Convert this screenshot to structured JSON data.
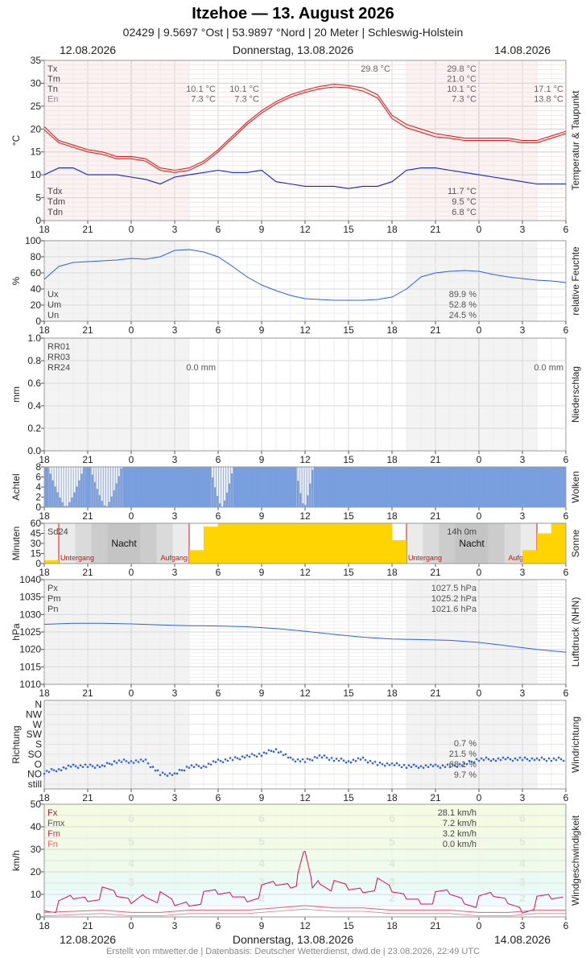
{
  "header": {
    "title": "Itzehoe  —  13. August 2026",
    "subtitle": "02429  |  9.5697 °Ost  |  53.9897 °Nord  |  20 Meter  |  Schleswig-Holstein",
    "date_left": "12.08.2026",
    "date_center": "Donnerstag, 13.08.2026",
    "date_right": "14.08.2026"
  },
  "footer": "Erstellt von mtwetter.de | Datenbasis: Deutscher Wetterdienst, dwd.de | 23.08.2026, 22:49 UTC",
  "x_ticks": [
    "18",
    "21",
    "0",
    "3",
    "6",
    "9",
    "12",
    "15",
    "18",
    "21",
    "0",
    "3",
    "6"
  ],
  "colors": {
    "temp": "#e02020",
    "dew": "#1020d0",
    "line": "#3060e0",
    "sun": "#ffd400",
    "gust": "#d01060",
    "wind_mean": "#e06070",
    "cloud": "#7ba0e0"
  },
  "chart_data": [
    {
      "type": "line",
      "id": "temperature",
      "ylabel": "°C",
      "side_label": "Temperatur & Taupunkt",
      "ylim": [
        0,
        35
      ],
      "yticks": [
        0,
        5,
        10,
        15,
        20,
        25,
        30,
        35
      ],
      "x_range_hours": [
        -6,
        30
      ],
      "legend_top": [
        {
          "key": "Tx",
          "day1": "",
          "day2": "29.8 °C",
          "day2b": "29.8 °C",
          "day3": ""
        },
        {
          "key": "Tm",
          "day1": "",
          "day2": "",
          "day2b": "21.0 °C",
          "day3": ""
        },
        {
          "key": "Tn",
          "day1": "10.1 °C",
          "day1b": "10.1 °C",
          "day2b": "10.1 °C",
          "day3": "17.1 °C"
        },
        {
          "key": "En",
          "day1": "7.3 °C",
          "day1b": "7.3 °C",
          "day2b": "7.3 °C",
          "day3": "13.8 °C"
        }
      ],
      "legend_bottom": [
        {
          "key": "Tdx",
          "value": "11.7 °C"
        },
        {
          "key": "Tdm",
          "value": "9.5 °C"
        },
        {
          "key": "Tdn",
          "value": "6.8 °C"
        }
      ],
      "series": [
        {
          "name": "Tx",
          "x": [
            -6,
            -5,
            -4,
            -3,
            -2,
            -1,
            0,
            1,
            2,
            3,
            4,
            5,
            6,
            7,
            8,
            9,
            10,
            11,
            12,
            13,
            14,
            15,
            16,
            17,
            18,
            19,
            20,
            21,
            22,
            23,
            24,
            25,
            26,
            27,
            28,
            29,
            30
          ],
          "y": [
            20.5,
            17.5,
            16.5,
            15.5,
            15.0,
            14.0,
            14.0,
            13.5,
            11.5,
            11.0,
            11.5,
            13.0,
            15.5,
            18.5,
            21.5,
            24.0,
            26.0,
            27.5,
            28.5,
            29.3,
            29.8,
            29.5,
            29.0,
            27.5,
            23.0,
            21.0,
            20.0,
            19.0,
            18.5,
            18.0,
            18.0,
            18.0,
            18.0,
            17.5,
            17.5,
            18.5,
            19.5
          ]
        },
        {
          "name": "Tm",
          "x": [
            -6,
            -5,
            -4,
            -3,
            -2,
            -1,
            0,
            1,
            2,
            3,
            4,
            5,
            6,
            7,
            8,
            9,
            10,
            11,
            12,
            13,
            14,
            15,
            16,
            17,
            18,
            19,
            20,
            21,
            22,
            23,
            24,
            25,
            26,
            27,
            28,
            29,
            30
          ],
          "y": [
            19.8,
            17.0,
            16.0,
            15.0,
            14.5,
            13.5,
            13.5,
            13.0,
            11.0,
            10.5,
            11.0,
            12.5,
            15.0,
            18.0,
            21.0,
            23.5,
            25.5,
            27.0,
            28.0,
            28.8,
            29.2,
            29.0,
            28.3,
            26.8,
            22.3,
            20.3,
            19.3,
            18.3,
            18.0,
            17.5,
            17.5,
            17.5,
            17.5,
            17.0,
            17.0,
            18.0,
            19.0
          ]
        },
        {
          "name": "Td",
          "x": [
            -6,
            -5,
            -4,
            -3,
            -2,
            -1,
            0,
            1,
            2,
            3,
            4,
            5,
            6,
            7,
            8,
            9,
            10,
            11,
            12,
            13,
            14,
            15,
            16,
            17,
            18,
            19,
            20,
            21,
            22,
            23,
            24,
            25,
            26,
            27,
            28,
            29,
            30
          ],
          "y": [
            10.0,
            11.5,
            11.5,
            10.0,
            10.0,
            10.0,
            9.5,
            9.0,
            8.0,
            9.5,
            10.0,
            10.5,
            11.0,
            10.5,
            10.5,
            11.0,
            8.5,
            8.0,
            7.5,
            7.5,
            7.5,
            7.0,
            7.5,
            7.5,
            8.5,
            11.0,
            11.5,
            11.5,
            11.0,
            10.5,
            10.0,
            9.5,
            9.0,
            8.5,
            8.0,
            8.0,
            8.0
          ]
        }
      ]
    },
    {
      "type": "line",
      "id": "humidity",
      "ylabel": "%",
      "side_label": "relative Feuchte",
      "ylim": [
        0,
        100
      ],
      "yticks": [
        0,
        20,
        40,
        60,
        80,
        100
      ],
      "legend": [
        {
          "key": "Ux",
          "value": "89.9 %"
        },
        {
          "key": "Um",
          "value": "52.8 %"
        },
        {
          "key": "Un",
          "value": "24.5 %"
        }
      ],
      "series": [
        {
          "name": "U",
          "x": [
            -6,
            -5,
            -4,
            -3,
            -2,
            -1,
            0,
            1,
            2,
            3,
            4,
            5,
            6,
            7,
            8,
            9,
            10,
            11,
            12,
            13,
            14,
            15,
            16,
            17,
            18,
            19,
            20,
            21,
            22,
            23,
            24,
            25,
            26,
            27,
            28,
            29,
            30
          ],
          "y": [
            52,
            68,
            73,
            74,
            75,
            76,
            78,
            77,
            80,
            88,
            89,
            86,
            80,
            68,
            55,
            45,
            38,
            32,
            28,
            27,
            26,
            26,
            26,
            27,
            30,
            40,
            55,
            60,
            62,
            63,
            62,
            58,
            55,
            53,
            51,
            50,
            48
          ]
        }
      ]
    },
    {
      "type": "bar",
      "id": "precipitation",
      "ylabel": "mm",
      "side_label": "Niederschlag",
      "ylim": [
        0,
        1.0
      ],
      "yticks": [
        0.0,
        0.2,
        0.4,
        0.6,
        0.8,
        1.0
      ],
      "legend": [
        "RR01",
        "RR03",
        "RR24"
      ],
      "totals": {
        "day1": "0.0 mm",
        "day2": "0.0 mm"
      },
      "values": []
    },
    {
      "type": "bar",
      "id": "clouds",
      "ylabel": "Achtel",
      "side_label": "Wolken",
      "ylim": [
        0,
        8
      ],
      "yticks": [
        0,
        2,
        4,
        6,
        8
      ],
      "clear_gaps_hours": [
        [
          -5.8,
          -3.3
        ],
        [
          -2.9,
          -0.7
        ],
        [
          5.4,
          7.0
        ],
        [
          11.3,
          12.5
        ]
      ]
    },
    {
      "type": "bar",
      "id": "sunshine",
      "ylabel": "Minuten",
      "side_label": "Sonne",
      "ylim": [
        0,
        60
      ],
      "yticks": [
        0,
        15,
        30,
        45,
        60
      ],
      "legend": "Sd24",
      "total": "14h 0m",
      "night_label": "Nacht",
      "sunset_label": "Untergang",
      "sunrise_label": "Aufgang",
      "sunset_hours": [
        -5.0,
        19.0
      ],
      "sunrise_hours": [
        4.0,
        28.0
      ],
      "hourly_minutes_x": [
        -6,
        -5,
        4,
        5,
        6,
        7,
        8,
        9,
        10,
        11,
        12,
        13,
        14,
        15,
        16,
        17,
        18,
        27,
        28,
        29
      ],
      "hourly_minutes": [
        5,
        0,
        20,
        55,
        60,
        60,
        60,
        60,
        60,
        60,
        60,
        60,
        60,
        60,
        60,
        60,
        35,
        20,
        45,
        60
      ]
    },
    {
      "type": "line",
      "id": "pressure",
      "ylabel": "hPa",
      "side_label": "Luftdruck (NHN)",
      "ylim": [
        1010,
        1040
      ],
      "yticks": [
        1010,
        1015,
        1020,
        1025,
        1030,
        1035,
        1040
      ],
      "legend": [
        {
          "key": "Px",
          "value": "1027.5 hPa"
        },
        {
          "key": "Pm",
          "value": "1025.2 hPa"
        },
        {
          "key": "Pn",
          "value": "1021.6 hPa"
        }
      ],
      "series": [
        {
          "name": "P",
          "x": [
            -6,
            -4,
            -2,
            0,
            2,
            4,
            6,
            8,
            10,
            12,
            14,
            16,
            18,
            20,
            22,
            24,
            26,
            28,
            30
          ],
          "y": [
            1027.2,
            1027.5,
            1027.5,
            1027.3,
            1027.0,
            1026.8,
            1026.7,
            1026.5,
            1026.0,
            1025.2,
            1024.3,
            1023.5,
            1023.0,
            1022.8,
            1022.6,
            1022.0,
            1021.0,
            1020.0,
            1019.2
          ]
        }
      ]
    },
    {
      "type": "scatter",
      "id": "wind_direction",
      "ylabel": "Richtung",
      "side_label": "Windrichtung",
      "yticks_labels": [
        "still",
        "NO",
        "O",
        "SO",
        "S",
        "SW",
        "W",
        "NW",
        "N"
      ],
      "legend": [
        {
          "key": "",
          "value": "0.7 %"
        },
        {
          "key": "",
          "value": "21.5 %"
        },
        {
          "key": "",
          "value": "68.1 %"
        },
        {
          "key": "",
          "value": "9.7 %"
        }
      ],
      "series": [
        {
          "name": "dir",
          "x": [
            -6,
            -5,
            -4,
            -3,
            -2,
            -1,
            0,
            1,
            2,
            3,
            4,
            5,
            6,
            7,
            8,
            9,
            10,
            11,
            12,
            13,
            14,
            15,
            16,
            17,
            18,
            19,
            20,
            21,
            22,
            23,
            24,
            25,
            26,
            27,
            28,
            29,
            30
          ],
          "y": [
            1.2,
            1.5,
            1.8,
            1.8,
            1.8,
            2.3,
            2.3,
            2.3,
            1.0,
            1.0,
            1.8,
            1.8,
            2.3,
            2.5,
            2.8,
            3.0,
            3.5,
            2.5,
            2.3,
            2.8,
            2.5,
            2.3,
            2.5,
            2.0,
            2.0,
            1.8,
            1.8,
            1.8,
            1.8,
            2.0,
            2.5,
            2.5,
            2.5,
            2.5,
            2.5,
            2.5,
            2.5
          ]
        }
      ]
    },
    {
      "type": "line",
      "id": "wind_speed",
      "ylabel": "km/h",
      "side_label": "Windgeschwindigkeit",
      "ylim": [
        0,
        50
      ],
      "yticks": [
        0,
        10,
        20,
        30,
        40,
        50
      ],
      "bft_labels": [
        "2",
        "3",
        "4",
        "5",
        "6"
      ],
      "legend": [
        {
          "key": "Fx",
          "value": "28.1 km/h"
        },
        {
          "key": "Fmx",
          "value": "7.2 km/h"
        },
        {
          "key": "Fm",
          "value": "3.2 km/h"
        },
        {
          "key": "Fn",
          "value": "0.0 km/h"
        }
      ],
      "series": [
        {
          "name": "Fx",
          "x": [
            -6,
            -5,
            -4,
            -3,
            -2,
            -1,
            0,
            1,
            2,
            3,
            4,
            5,
            6,
            7,
            8,
            9,
            10,
            11,
            11.5,
            12,
            12.5,
            13,
            14,
            15,
            16,
            17,
            18,
            19,
            20,
            21,
            22,
            23,
            24,
            25,
            26,
            27,
            28,
            29,
            30
          ],
          "y": [
            6,
            5,
            8,
            9,
            10,
            8,
            7,
            12,
            9,
            5,
            7,
            8,
            9,
            10,
            10,
            12,
            14,
            15,
            16,
            28,
            14,
            18,
            14,
            12,
            13,
            14,
            10,
            9,
            9,
            9,
            10,
            8,
            6,
            8,
            7,
            5,
            7,
            8,
            9
          ]
        },
        {
          "name": "Fm",
          "x": [
            -6,
            -4,
            -2,
            0,
            2,
            4,
            6,
            8,
            10,
            12,
            14,
            16,
            18,
            20,
            22,
            24,
            26,
            28,
            30
          ],
          "y": [
            2,
            2.5,
            3,
            2,
            2,
            3,
            3,
            3,
            4,
            5,
            4,
            4,
            3,
            3,
            3,
            2,
            2,
            3,
            3
          ]
        }
      ]
    }
  ]
}
